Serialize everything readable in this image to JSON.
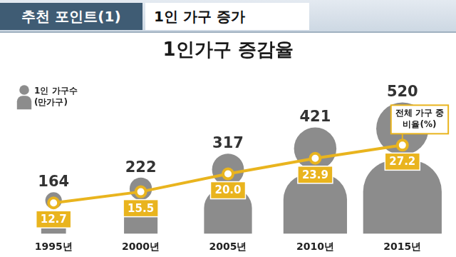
{
  "header": {
    "badge": "추천 포인트(1)",
    "title": "1인 가구 증가"
  },
  "chart_data": {
    "type": "line",
    "title": "1인가구 증감율",
    "categories": [
      "1995년",
      "2000년",
      "2005년",
      "2010년",
      "2015년"
    ],
    "series": [
      {
        "name": "1인 가구수 (만가구)",
        "type": "bar",
        "marker": "person",
        "color": "#8c8c8c",
        "axis": "y2",
        "values": [
          164,
          222,
          317,
          421,
          520
        ]
      },
      {
        "name": "전체 가구 중 비율(%)",
        "type": "line",
        "marker": "circle",
        "color": "#e9b41e",
        "values": [
          12.7,
          15.5,
          20.0,
          23.9,
          27.2
        ],
        "value_labels": [
          "12.7",
          "15.5",
          "20.0",
          "23.9",
          "27.2"
        ]
      }
    ],
    "ylim": [
      5,
      43
    ],
    "y2lim": [
      0,
      600
    ],
    "tick_labels": "x",
    "grid": false,
    "data_labels": true,
    "legend": "top-left"
  }
}
